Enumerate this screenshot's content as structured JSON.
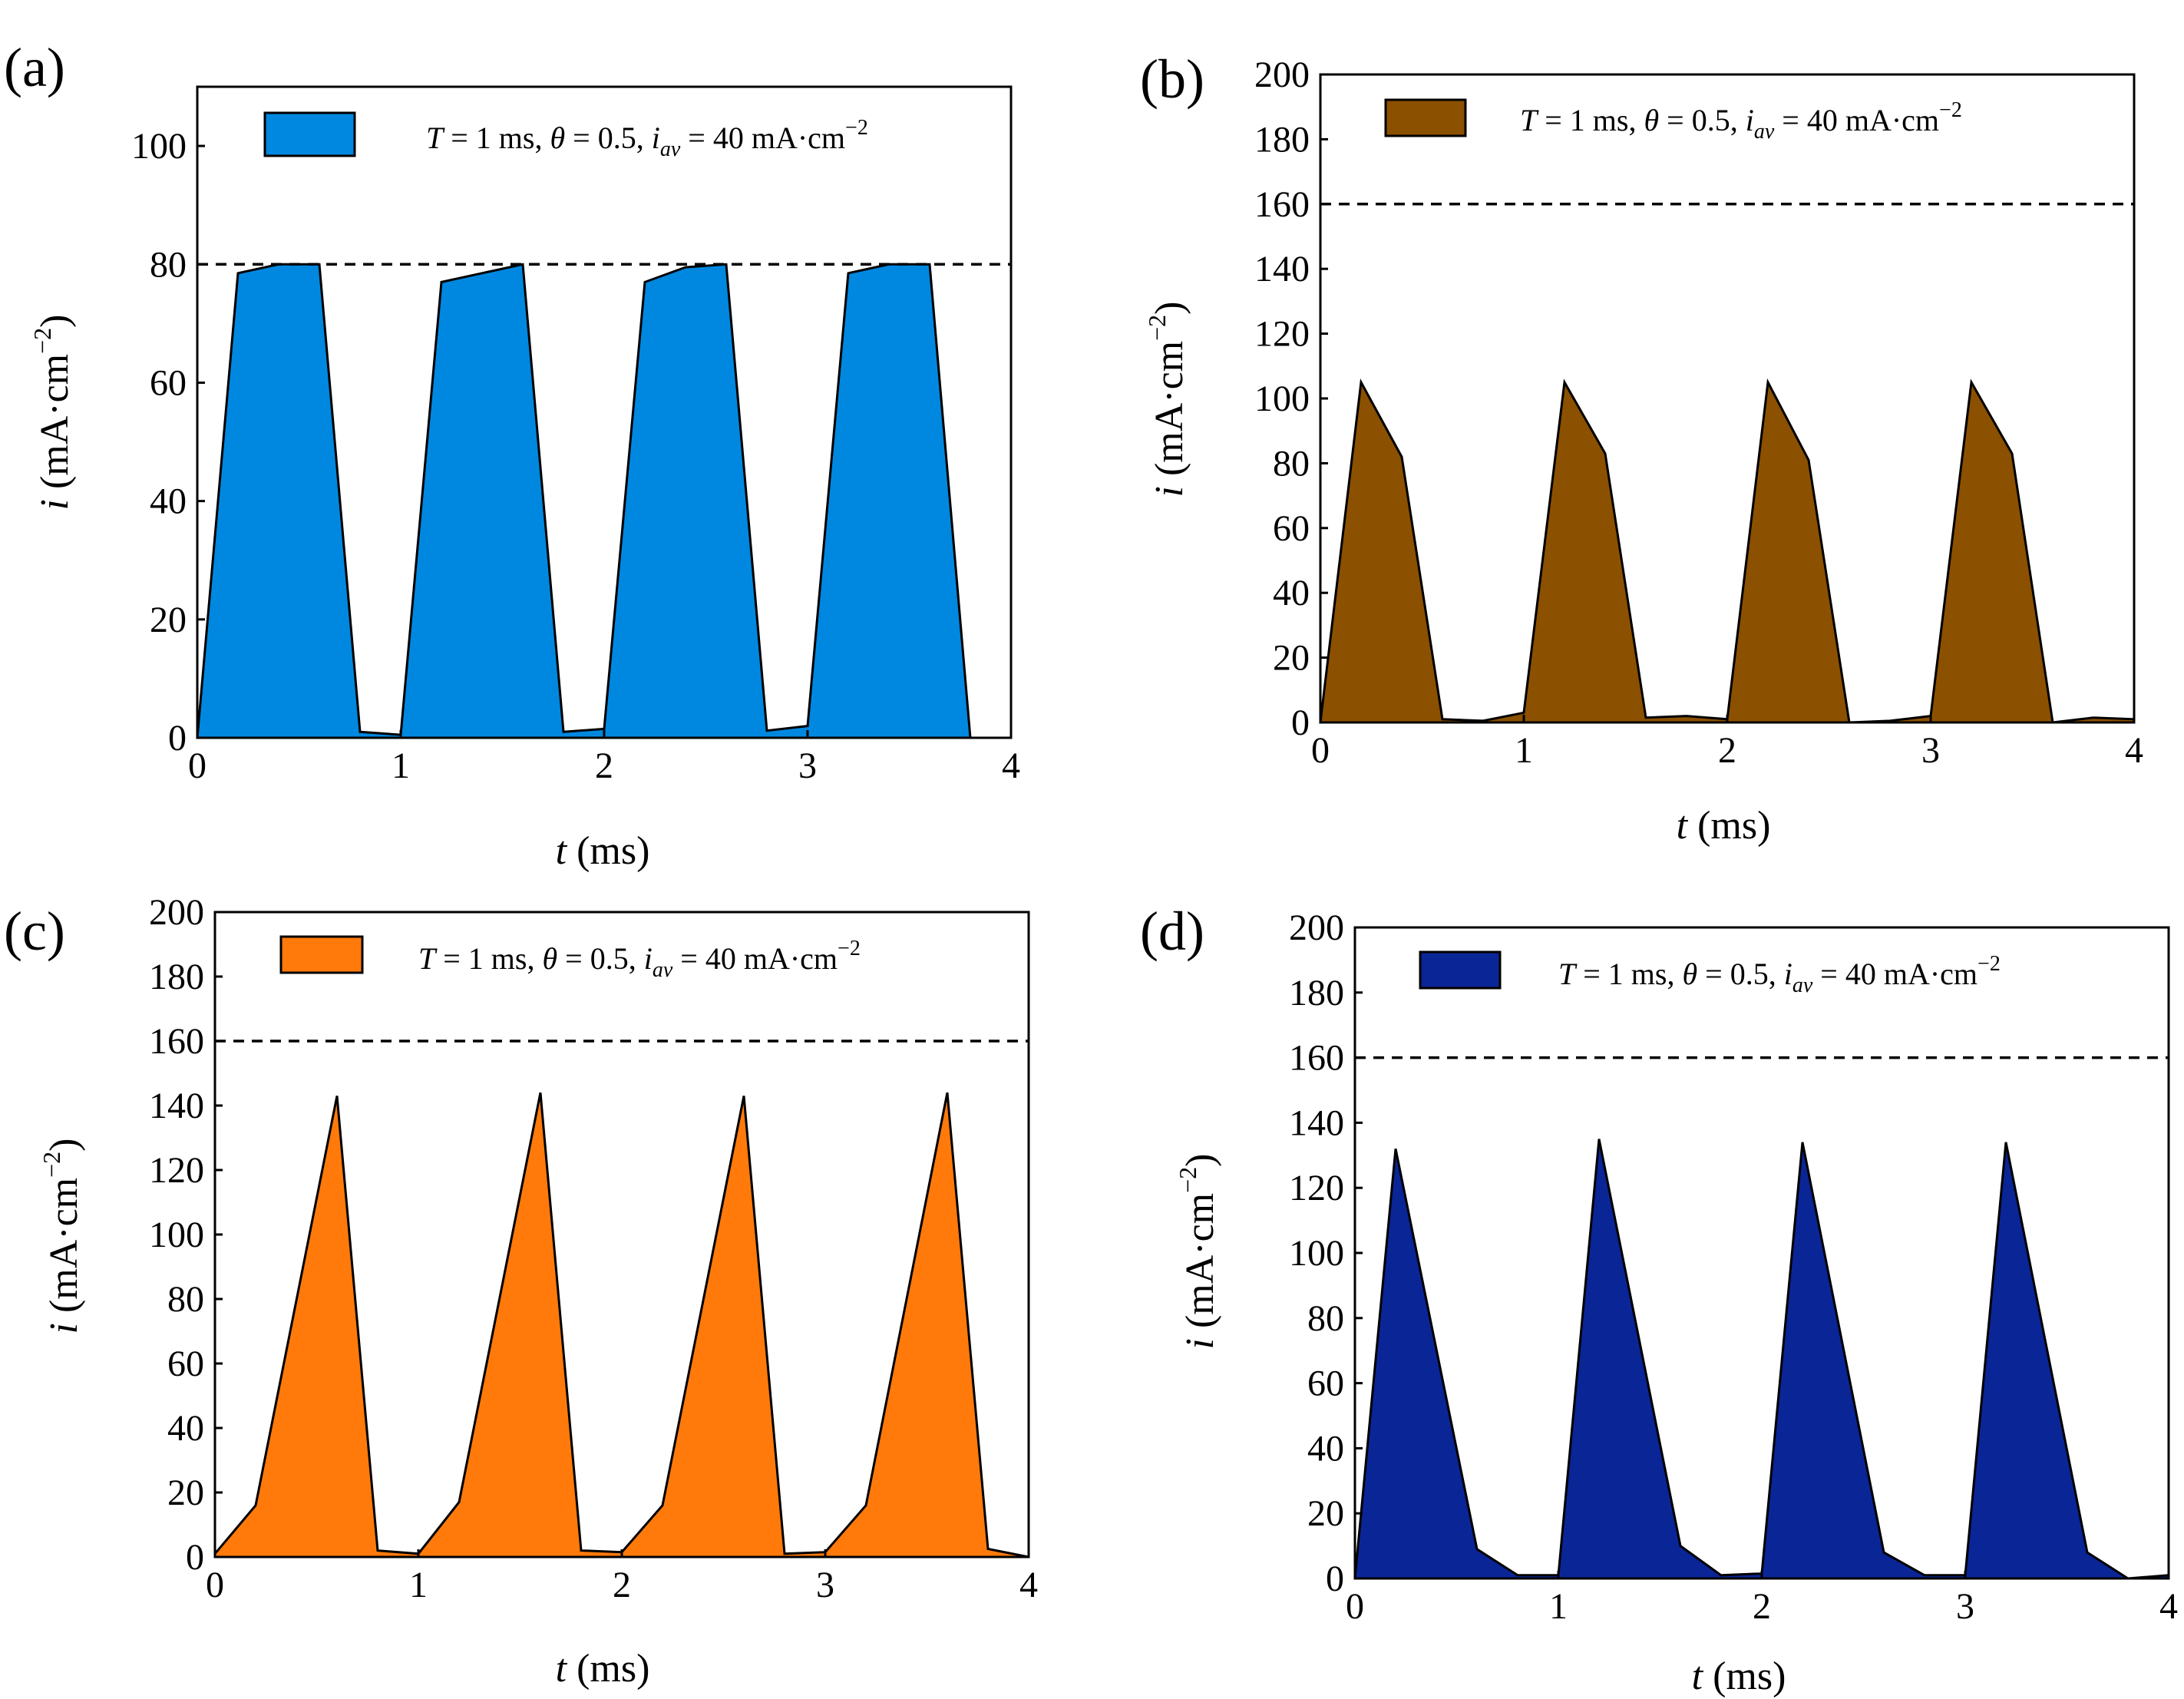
{
  "legend_text": {
    "prefix_var": "T",
    "prefix_rest": " = 1 ms, ",
    "theta_var": "θ",
    "theta_rest": " = 0.5, ",
    "i_var": "i",
    "i_sub": "av",
    "i_rest": " = 40 mA·cm",
    "i_sup": "−2"
  },
  "chart_data": [
    {
      "panel": "(a)",
      "type": "area",
      "xlabel_var": "t",
      "xlabel_rest": " (ms)",
      "ylabel_var": "i",
      "ylabel_rest": " (mA·cm",
      "ylabel_sup": "−2",
      "ylabel_close": ")",
      "xlim": [
        0,
        4
      ],
      "ylim": [
        0,
        110
      ],
      "xticks": [
        0,
        1,
        2,
        3,
        4
      ],
      "yticks": [
        0,
        20,
        40,
        60,
        80,
        100
      ],
      "fill_color": "#0088e0",
      "reference_line": 80,
      "series": [
        {
          "x": [
            0,
            0.2,
            0.4,
            0.6,
            0.8,
            1.0,
            1.2,
            1.4,
            1.6,
            1.8,
            2.0,
            2.2,
            2.4,
            2.6,
            2.8,
            3.0,
            3.2,
            3.4,
            3.6,
            3.8,
            4.0
          ],
          "y": [
            0,
            78.5,
            80,
            80,
            1,
            0.5,
            77,
            78.5,
            80,
            1,
            1.5,
            77,
            79.5,
            80,
            1.2,
            2,
            78.5,
            80,
            80,
            0,
            0
          ]
        }
      ]
    },
    {
      "panel": "(b)",
      "type": "area",
      "xlabel_var": "t",
      "xlabel_rest": " (ms)",
      "ylabel_var": "i",
      "ylabel_rest": " (mA·cm",
      "ylabel_sup": "−2",
      "ylabel_close": ")",
      "xlim": [
        0,
        4
      ],
      "ylim": [
        0,
        200
      ],
      "xticks": [
        0,
        1,
        2,
        3,
        4
      ],
      "yticks": [
        0,
        20,
        40,
        60,
        80,
        100,
        120,
        140,
        160,
        180,
        200
      ],
      "fill_color": "#8b5000",
      "reference_line": 160,
      "series": [
        {
          "x": [
            0,
            0.2,
            0.4,
            0.6,
            0.8,
            1.0,
            1.2,
            1.4,
            1.6,
            1.8,
            2.0,
            2.2,
            2.4,
            2.6,
            2.8,
            3.0,
            3.2,
            3.4,
            3.6,
            3.8,
            4.0
          ],
          "y": [
            0,
            105,
            82,
            1,
            0.5,
            3,
            105,
            83,
            1.5,
            2,
            1,
            105,
            81,
            0,
            0.5,
            2,
            105,
            83,
            0,
            1.5,
            1
          ]
        }
      ]
    },
    {
      "panel": "(c)",
      "type": "area",
      "xlabel_var": "t",
      "xlabel_rest": " (ms)",
      "ylabel_var": "i",
      "ylabel_rest": " (mA·cm",
      "ylabel_sup": "−2",
      "ylabel_close": ")",
      "xlim": [
        0,
        4
      ],
      "ylim": [
        0,
        200
      ],
      "xticks": [
        0,
        1,
        2,
        3,
        4
      ],
      "yticks": [
        0,
        20,
        40,
        60,
        80,
        100,
        120,
        140,
        160,
        180,
        200
      ],
      "fill_color": "#ff7a0a",
      "reference_line": 160,
      "series": [
        {
          "x": [
            0,
            0.2,
            0.6,
            0.8,
            1.0,
            1.2,
            1.6,
            1.8,
            2.0,
            2.2,
            2.6,
            2.8,
            3.0,
            3.2,
            3.6,
            3.8,
            4.0
          ],
          "y": [
            1,
            16,
            143,
            2,
            1,
            17,
            144,
            2,
            1.5,
            16,
            143,
            1,
            1.5,
            16,
            144,
            2.5,
            0
          ]
        }
      ]
    },
    {
      "panel": "(d)",
      "type": "area",
      "xlabel_var": "t",
      "xlabel_rest": " (ms)",
      "ylabel_var": "i",
      "ylabel_rest": " (mA·cm",
      "ylabel_sup": "−2",
      "ylabel_close": ")",
      "xlim": [
        0,
        4
      ],
      "ylim": [
        0,
        200
      ],
      "xticks": [
        0,
        1,
        2,
        3,
        4
      ],
      "yticks": [
        0,
        20,
        40,
        60,
        80,
        100,
        120,
        140,
        160,
        180,
        200
      ],
      "fill_color": "#0a2596",
      "reference_line": 160,
      "series": [
        {
          "x": [
            0,
            0.2,
            0.6,
            0.8,
            1.0,
            1.2,
            1.6,
            1.8,
            2.0,
            2.2,
            2.6,
            2.8,
            3.0,
            3.2,
            3.6,
            3.8,
            4.0
          ],
          "y": [
            0,
            132,
            9,
            1,
            1,
            135,
            10,
            1,
            1.5,
            134,
            8,
            1,
            1,
            134,
            8,
            0,
            1
          ]
        }
      ]
    }
  ]
}
